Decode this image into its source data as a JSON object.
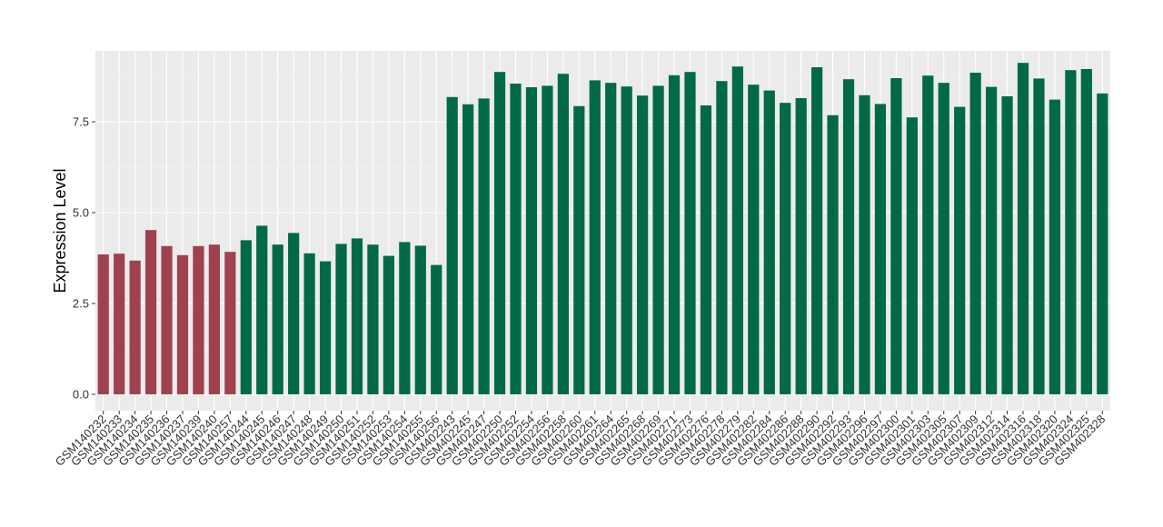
{
  "chart_data": {
    "type": "bar",
    "title": "",
    "xlabel": "",
    "ylabel": "Expression Level",
    "ylim": [
      -0.45,
      9.45
    ],
    "yticks": [
      0.0,
      2.5,
      5.0,
      7.5
    ],
    "ytick_labels": [
      "0.0",
      "2.5",
      "5.0",
      "7.5"
    ],
    "grid": true,
    "legend": "none",
    "colors": {
      "group_1": "#9E4250",
      "group_2": "#006A45",
      "panel_background": "#EBEBEB",
      "grid_major": "#FFFFFF"
    },
    "categories": [
      "GSM140232",
      "GSM140233",
      "GSM140234",
      "GSM140235",
      "GSM140236",
      "GSM140237",
      "GSM140239",
      "GSM140240",
      "GSM140257",
      "GSM140244",
      "GSM140245",
      "GSM140246",
      "GSM140247",
      "GSM140248",
      "GSM140249",
      "GSM140250",
      "GSM140251",
      "GSM140252",
      "GSM140253",
      "GSM140254",
      "GSM140255",
      "GSM140256",
      "GSM402243",
      "GSM402245",
      "GSM402247",
      "GSM402250",
      "GSM402252",
      "GSM402254",
      "GSM402256",
      "GSM402258",
      "GSM402260",
      "GSM402261",
      "GSM402264",
      "GSM402265",
      "GSM402268",
      "GSM402269",
      "GSM402271",
      "GSM402273",
      "GSM402276",
      "GSM402278",
      "GSM402279",
      "GSM402282",
      "GSM402284",
      "GSM402286",
      "GSM402288",
      "GSM402290",
      "GSM402292",
      "GSM402293",
      "GSM402296",
      "GSM402297",
      "GSM402300",
      "GSM402301",
      "GSM402303",
      "GSM402305",
      "GSM402307",
      "GSM402309",
      "GSM402312",
      "GSM402314",
      "GSM402316",
      "GSM402318",
      "GSM402320",
      "GSM402324",
      "GSM402325",
      "GSM402328"
    ],
    "values": [
      3.85,
      3.87,
      3.68,
      4.52,
      4.08,
      3.83,
      4.08,
      4.12,
      3.92,
      4.24,
      4.64,
      4.12,
      4.44,
      3.88,
      3.66,
      4.14,
      4.29,
      4.12,
      3.81,
      4.19,
      4.09,
      3.56,
      8.18,
      7.98,
      8.14,
      8.87,
      8.55,
      8.45,
      8.49,
      8.82,
      7.93,
      8.64,
      8.57,
      8.47,
      8.22,
      8.49,
      8.78,
      8.87,
      7.95,
      8.62,
      9.02,
      8.52,
      8.36,
      8.02,
      8.15,
      9.0,
      7.68,
      8.67,
      8.23,
      7.99,
      8.7,
      7.62,
      8.77,
      8.57,
      7.91,
      8.85,
      8.46,
      8.2,
      9.12,
      8.69,
      8.11,
      8.92,
      8.95,
      8.28
    ],
    "groups": [
      1,
      1,
      1,
      1,
      1,
      1,
      1,
      1,
      1,
      2,
      2,
      2,
      2,
      2,
      2,
      2,
      2,
      2,
      2,
      2,
      2,
      2,
      2,
      2,
      2,
      2,
      2,
      2,
      2,
      2,
      2,
      2,
      2,
      2,
      2,
      2,
      2,
      2,
      2,
      2,
      2,
      2,
      2,
      2,
      2,
      2,
      2,
      2,
      2,
      2,
      2,
      2,
      2,
      2,
      2,
      2,
      2,
      2,
      2,
      2,
      2,
      2,
      2,
      2
    ]
  }
}
